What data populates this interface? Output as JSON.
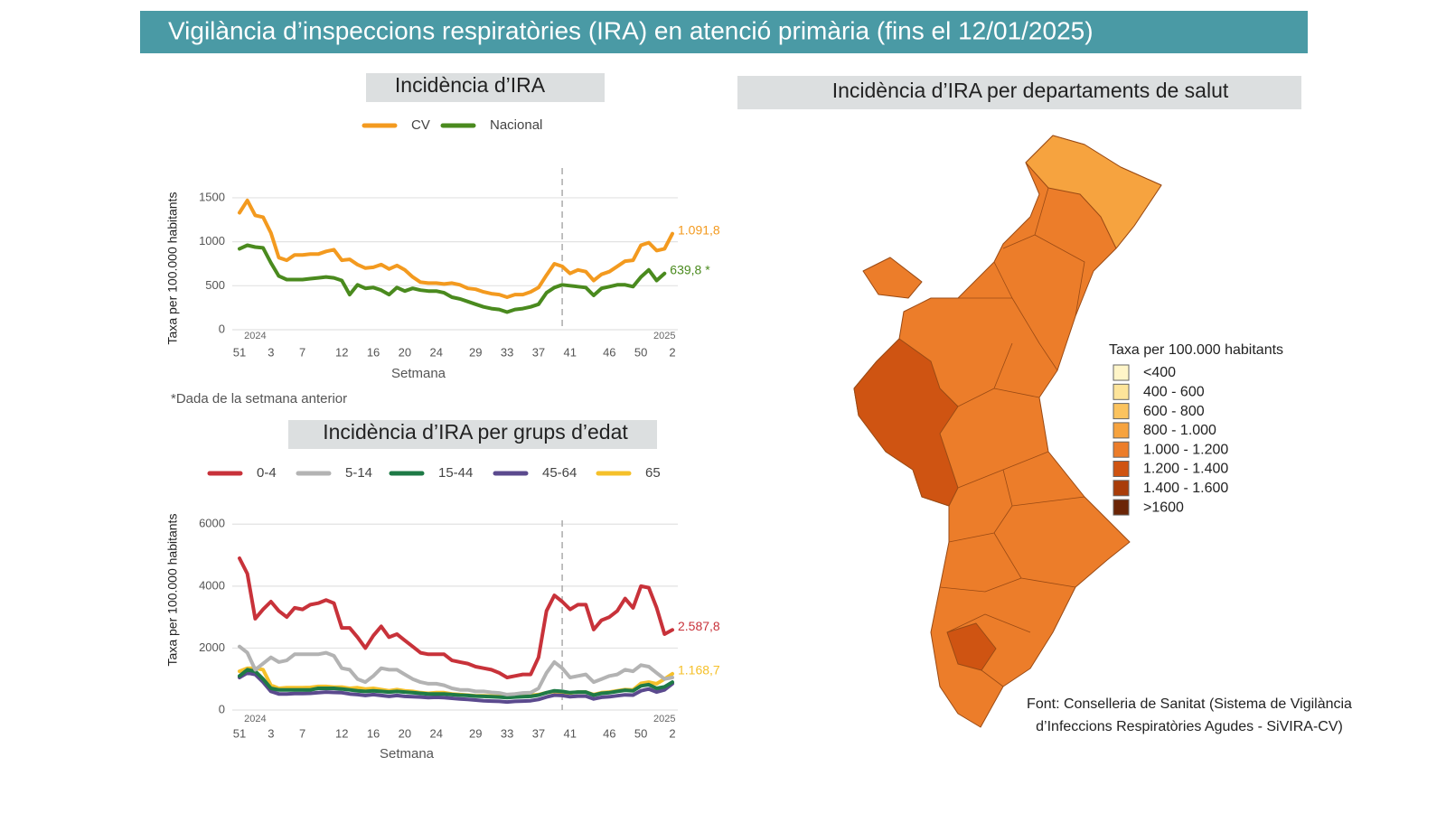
{
  "header": {
    "title": "Vigilància d’inspeccions respiratòries (IRA) en atenció primària (fins el 12/01/2025)"
  },
  "chart_data": [
    {
      "type": "line",
      "title": "Incidència d’IRA",
      "ylabel": "Taxa per 100.000 habitants",
      "xlabel": "Setmana",
      "note": "*Dada de la setmana anterior",
      "annotations": [
        "2024",
        "2025"
      ],
      "categories": [
        "51",
        null,
        null,
        null,
        "3",
        null,
        null,
        null,
        "7",
        null,
        null,
        null,
        null,
        "12",
        null,
        null,
        null,
        "16",
        null,
        null,
        null,
        "20",
        null,
        null,
        null,
        "24",
        null,
        null,
        null,
        null,
        "29",
        null,
        null,
        null,
        "33",
        null,
        null,
        null,
        "37",
        null,
        null,
        null,
        "41",
        null,
        null,
        null,
        null,
        "46",
        null,
        null,
        null,
        "50",
        null,
        null,
        null,
        "2"
      ],
      "ylim": [
        0,
        1900
      ],
      "yticks": [
        0,
        500,
        1000,
        1500
      ],
      "grid": true,
      "series": [
        {
          "name": "CV",
          "color": "#f39a1f",
          "values": [
            1330,
            1470,
            1300,
            1280,
            1100,
            820,
            790,
            850,
            850,
            860,
            860,
            890,
            910,
            790,
            800,
            740,
            700,
            710,
            740,
            690,
            730,
            680,
            600,
            540,
            530,
            530,
            520,
            530,
            510,
            470,
            460,
            430,
            410,
            400,
            370,
            400,
            400,
            430,
            480,
            620,
            750,
            720,
            640,
            680,
            660,
            560,
            630,
            660,
            720,
            780,
            790,
            960,
            990,
            900,
            920,
            1091.8
          ],
          "value_labels": [
            null,
            null,
            null,
            null,
            null,
            null,
            null,
            null,
            null,
            null,
            null,
            null,
            null,
            null,
            null,
            null,
            null,
            null,
            null,
            null,
            null,
            null,
            null,
            null,
            null,
            null,
            null,
            null,
            null,
            null,
            null,
            null,
            null,
            null,
            null,
            null,
            null,
            null,
            null,
            null,
            null,
            null,
            null,
            null,
            null,
            null,
            null,
            null,
            null,
            null,
            null,
            null,
            null,
            null,
            null,
            "1.091,8"
          ]
        },
        {
          "name": "Nacional",
          "color": "#4a8a1e",
          "values": [
            920,
            960,
            940,
            930,
            760,
            610,
            570,
            570,
            570,
            580,
            590,
            600,
            590,
            560,
            400,
            510,
            470,
            480,
            450,
            400,
            480,
            440,
            470,
            450,
            440,
            440,
            420,
            370,
            350,
            320,
            290,
            260,
            240,
            230,
            200,
            230,
            240,
            260,
            290,
            420,
            480,
            510,
            500,
            490,
            480,
            390,
            470,
            490,
            510,
            510,
            490,
            600,
            680,
            560,
            639.8,
            null
          ],
          "value_labels": [
            null,
            null,
            null,
            null,
            null,
            null,
            null,
            null,
            null,
            null,
            null,
            null,
            null,
            null,
            null,
            null,
            null,
            null,
            null,
            null,
            null,
            null,
            null,
            null,
            null,
            null,
            null,
            null,
            null,
            null,
            null,
            null,
            null,
            null,
            null,
            null,
            null,
            null,
            null,
            null,
            null,
            null,
            null,
            null,
            null,
            null,
            null,
            null,
            null,
            null,
            null,
            null,
            null,
            null,
            "639,8 *",
            null
          ]
        }
      ]
    },
    {
      "type": "line",
      "title": "Incidència d’IRA  per grups d’edat",
      "ylabel": "Taxa per 100.000 habitants",
      "xlabel": "Setmana",
      "annotations": [
        "2024",
        "2025"
      ],
      "categories": [
        "51",
        null,
        null,
        null,
        "3",
        null,
        null,
        null,
        "7",
        null,
        null,
        null,
        null,
        "12",
        null,
        null,
        null,
        "16",
        null,
        null,
        null,
        "20",
        null,
        null,
        null,
        "24",
        null,
        null,
        null,
        null,
        "29",
        null,
        null,
        null,
        "33",
        null,
        null,
        null,
        "37",
        null,
        null,
        null,
        "41",
        null,
        null,
        null,
        null,
        "46",
        null,
        null,
        null,
        "50",
        null,
        null,
        null,
        "2"
      ],
      "ylim": [
        0,
        6300
      ],
      "yticks": [
        0,
        2000,
        4000,
        6000
      ],
      "grid": true,
      "series": [
        {
          "name": "0-4",
          "color": "#c8323a",
          "values": [
            4900,
            4400,
            2950,
            3250,
            3500,
            3200,
            3000,
            3300,
            3250,
            3400,
            3450,
            3550,
            3450,
            2650,
            2650,
            2350,
            2000,
            2400,
            2700,
            2350,
            2450,
            2250,
            2050,
            1850,
            1800,
            1800,
            1800,
            1600,
            1550,
            1500,
            1400,
            1350,
            1300,
            1200,
            1050,
            1100,
            1150,
            1150,
            1700,
            3200,
            3700,
            3500,
            3250,
            3400,
            3400,
            2600,
            2900,
            3000,
            3200,
            3600,
            3300,
            4000,
            3950,
            3300,
            2450,
            2587.8
          ],
          "value_labels": [
            null,
            null,
            null,
            null,
            null,
            null,
            null,
            null,
            null,
            null,
            null,
            null,
            null,
            null,
            null,
            null,
            null,
            null,
            null,
            null,
            null,
            null,
            null,
            null,
            null,
            null,
            null,
            null,
            null,
            null,
            null,
            null,
            null,
            null,
            null,
            null,
            null,
            null,
            null,
            null,
            null,
            null,
            null,
            null,
            null,
            null,
            null,
            null,
            null,
            null,
            null,
            null,
            null,
            null,
            null,
            "2.587,8"
          ]
        },
        {
          "name": "5-14",
          "color": "#b3b3b3",
          "values": [
            2050,
            1850,
            1300,
            1500,
            1700,
            1550,
            1600,
            1800,
            1800,
            1800,
            1800,
            1850,
            1750,
            1350,
            1300,
            1000,
            900,
            1100,
            1350,
            1300,
            1300,
            1150,
            1000,
            900,
            850,
            850,
            800,
            700,
            650,
            650,
            600,
            600,
            570,
            550,
            500,
            520,
            550,
            560,
            700,
            1200,
            1550,
            1350,
            1050,
            1100,
            1150,
            900,
            1000,
            1100,
            1150,
            1300,
            1250,
            1450,
            1400,
            1200,
            1000,
            1050
          ]
        },
        {
          "name": "15-44",
          "color": "#1e7a46",
          "values": [
            1100,
            1300,
            1250,
            1000,
            700,
            650,
            650,
            650,
            650,
            650,
            700,
            700,
            700,
            680,
            650,
            620,
            600,
            620,
            600,
            580,
            600,
            580,
            560,
            540,
            520,
            520,
            520,
            500,
            480,
            470,
            450,
            440,
            430,
            420,
            400,
            420,
            430,
            440,
            480,
            560,
            620,
            600,
            560,
            580,
            580,
            480,
            540,
            560,
            600,
            640,
            620,
            780,
            820,
            700,
            750,
            900
          ]
        },
        {
          "name": "45-64",
          "color": "#5b4a8e",
          "values": [
            1050,
            1200,
            1150,
            900,
            600,
            520,
            520,
            530,
            530,
            540,
            560,
            580,
            570,
            560,
            520,
            500,
            470,
            500,
            470,
            440,
            470,
            440,
            430,
            420,
            400,
            410,
            400,
            380,
            360,
            340,
            320,
            300,
            290,
            280,
            260,
            280,
            290,
            300,
            340,
            420,
            480,
            470,
            430,
            450,
            450,
            360,
            410,
            430,
            460,
            490,
            480,
            620,
            680,
            580,
            650,
            850
          ]
        },
        {
          "name": "65",
          "color": "#f5c02a",
          "values": [
            1250,
            1350,
            1350,
            1300,
            800,
            700,
            720,
            720,
            720,
            730,
            760,
            760,
            740,
            740,
            700,
            720,
            680,
            700,
            660,
            620,
            660,
            620,
            600,
            560,
            540,
            560,
            560,
            520,
            500,
            480,
            460,
            460,
            450,
            440,
            420,
            440,
            450,
            470,
            500,
            560,
            600,
            570,
            550,
            580,
            580,
            500,
            560,
            580,
            620,
            660,
            650,
            860,
            900,
            850,
            1000,
            1168.7
          ],
          "value_labels": [
            null,
            null,
            null,
            null,
            null,
            null,
            null,
            null,
            null,
            null,
            null,
            null,
            null,
            null,
            null,
            null,
            null,
            null,
            null,
            null,
            null,
            null,
            null,
            null,
            null,
            null,
            null,
            null,
            null,
            null,
            null,
            null,
            null,
            null,
            null,
            null,
            null,
            null,
            null,
            null,
            null,
            null,
            null,
            null,
            null,
            null,
            null,
            null,
            null,
            null,
            null,
            null,
            null,
            null,
            null,
            "1.168,7"
          ]
        }
      ]
    }
  ],
  "map": {
    "title": "Incidència d’IRA per departaments de salut",
    "legend": {
      "title": "Taxa per 100.000 habitants",
      "bins": [
        {
          "label": "<400",
          "color": "#fff5c8"
        },
        {
          "label": "400 - 600",
          "color": "#fde49a"
        },
        {
          "label": "600 - 800",
          "color": "#fbc35e"
        },
        {
          "label": "800 - 1.000",
          "color": "#f6a33f"
        },
        {
          "label": "1.000 - 1.200",
          "color": "#ec7d2a"
        },
        {
          "label": "1.200 - 1.400",
          "color": "#cf5412"
        },
        {
          "label": "1.400 - 1.600",
          "color": "#a93d0a"
        },
        {
          "label": ">1600",
          "color": "#6b2506"
        }
      ]
    }
  },
  "source": [
    "Font: Conselleria de Sanitat (Sistema de Vigilància",
    "d’Infeccions Respiratòries Agudes - SiVIRA-CV)"
  ]
}
